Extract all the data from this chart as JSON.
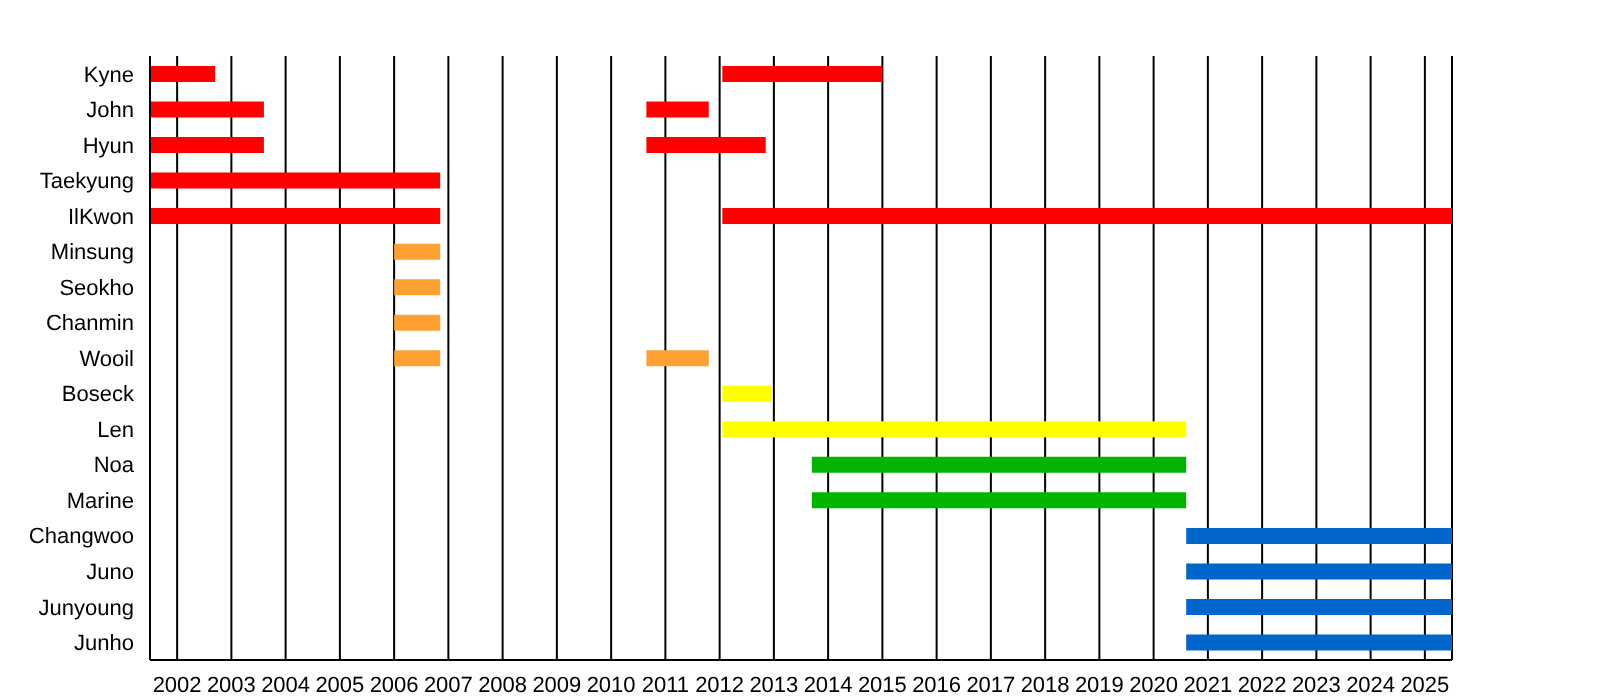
{
  "chart_data": {
    "type": "bar",
    "orientation": "horizontal",
    "categories": [
      "Kyne",
      "John",
      "Hyun",
      "Taekyung",
      "IlKwon",
      "Minsung",
      "Seokho",
      "Chanmin",
      "Wooil",
      "Boseck",
      "Len",
      "Noa",
      "Marine",
      "Changwoo",
      "Juno",
      "Junyoung",
      "Junho"
    ],
    "series": [
      {
        "colors": [
          "#ff0000",
          "#ff0000",
          "#ff0000",
          "#ff0000",
          "#ff0000",
          "#ffa033",
          "#ffa033",
          "#ffa033",
          "#ffa033",
          "#ffff00",
          "#ffff00",
          "#00b400",
          "#00b400",
          "#0066cc",
          "#0066cc",
          "#0066cc",
          "#0066cc"
        ],
        "base": [
          2001.5,
          2001.5,
          2001.5,
          2001.5,
          2001.5,
          2006,
          2006,
          2006,
          2006,
          2012.05,
          2012.05,
          2013.7,
          2013.7,
          2020.6,
          2020.6,
          2020.6,
          2020.6
        ],
        "values": [
          1.2,
          2.1,
          2.1,
          5.35,
          5.35,
          0.85,
          0.85,
          0.85,
          0.85,
          0.9,
          8.55,
          6.9,
          6.9,
          4.9,
          4.9,
          4.9,
          4.9
        ]
      },
      {
        "colors": [
          "#ff0000",
          "#ff0000",
          "#ff0000",
          null,
          "#ff0000",
          null,
          null,
          null,
          "#ffa033",
          null,
          null,
          null,
          null,
          null,
          null,
          null,
          null
        ],
        "base": [
          2012.05,
          2010.65,
          2010.65,
          null,
          2012.05,
          null,
          null,
          null,
          2010.65,
          null,
          null,
          null,
          null,
          null,
          null,
          null,
          null
        ],
        "values": [
          2.95,
          1.15,
          2.2,
          null,
          13.45,
          null,
          null,
          null,
          1.15,
          null,
          null,
          null,
          null,
          null,
          null,
          null,
          null
        ]
      }
    ],
    "xlim": [
      2001.5,
      2025.5
    ],
    "xticks": [
      2002,
      2003,
      2004,
      2005,
      2006,
      2007,
      2008,
      2009,
      2010,
      2011,
      2012,
      2013,
      2014,
      2015,
      2016,
      2017,
      2018,
      2019,
      2020,
      2021,
      2022,
      2023,
      2024,
      2025
    ],
    "grid": "x",
    "legend": false
  }
}
